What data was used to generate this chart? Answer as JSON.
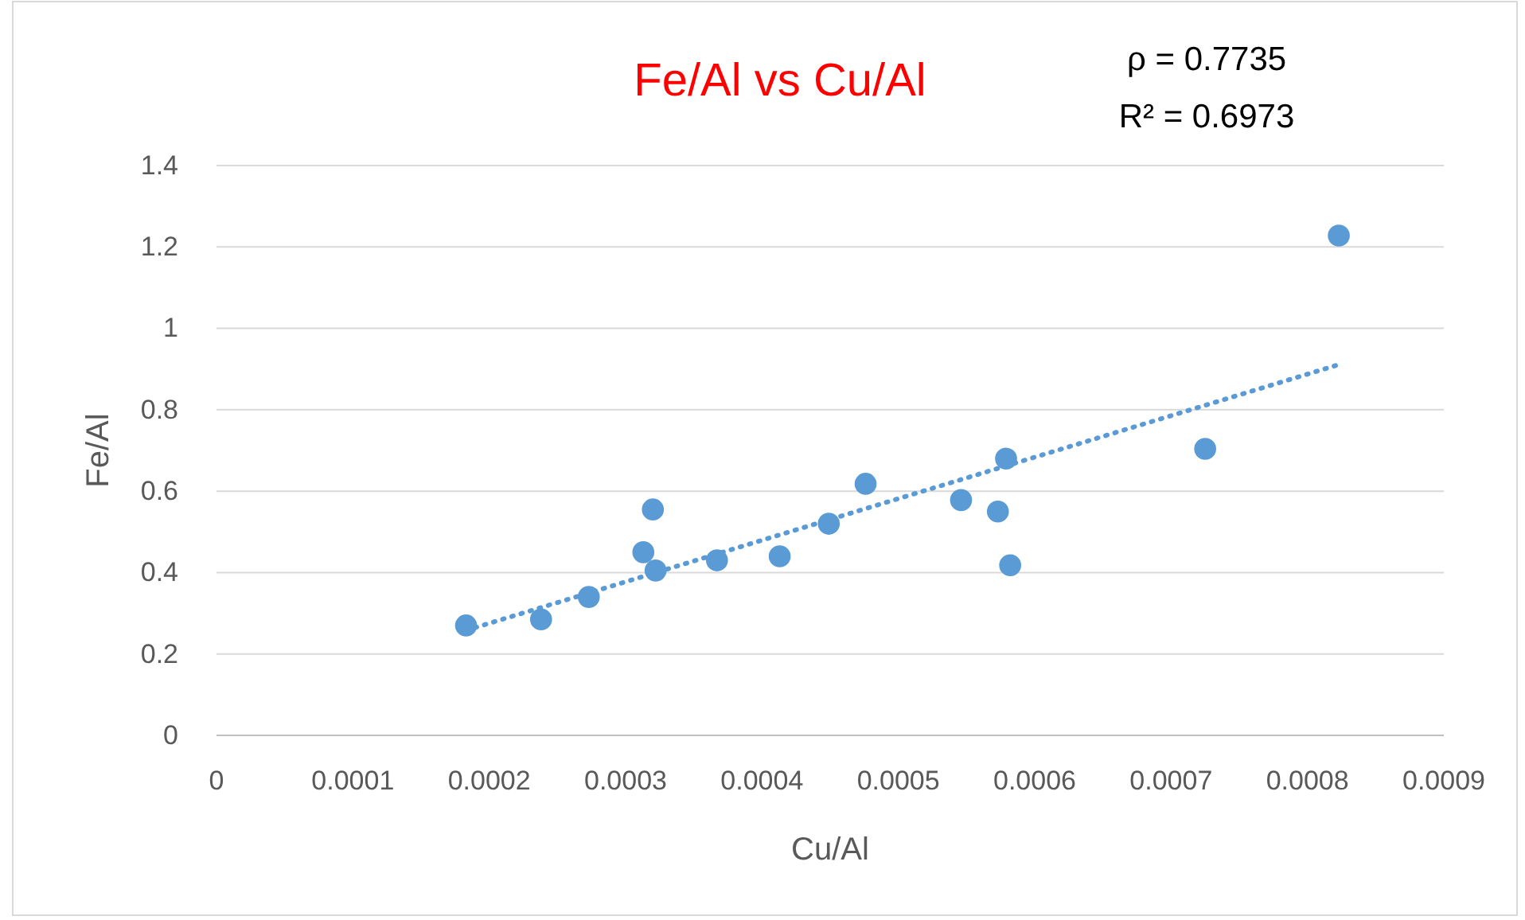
{
  "chart_data": {
    "type": "scatter",
    "title": "Fe/Al vs Cu/Al",
    "xlabel": "Cu/Al",
    "ylabel": "Fe/Al",
    "annotations": [
      "ρ = 0.7735",
      "R² = 0.6973"
    ],
    "xlim": [
      0,
      0.0009
    ],
    "xticks": [
      0,
      0.0001,
      0.0002,
      0.0003,
      0.0004,
      0.0005,
      0.0006,
      0.0007,
      0.0008,
      0.0009
    ],
    "ylim": [
      0,
      1.4
    ],
    "yticks": [
      {
        "value": 0,
        "label": "0"
      },
      0.2,
      0.4,
      0.6,
      0.8,
      {
        "value": 1,
        "label": "1"
      },
      1.2,
      1.4
    ],
    "grid": "y",
    "series": [
      {
        "type": "scatter",
        "color": "#5b9bd5",
        "marker": "circle",
        "x": [
          0.000183,
          0.000238,
          0.000273,
          0.000313,
          0.00032,
          0.000322,
          0.000367,
          0.000413,
          0.000449,
          0.000476,
          0.000546,
          0.000573,
          0.000579,
          0.000582,
          0.000725,
          0.000823
        ],
        "values": [
          0.27,
          0.285,
          0.34,
          0.45,
          0.555,
          0.405,
          0.43,
          0.44,
          0.52,
          0.618,
          0.578,
          0.55,
          0.68,
          0.418,
          0.704,
          1.228
        ]
      },
      {
        "type": "line",
        "color": "#5b9bd5",
        "line_style": "dotted",
        "marker": "none",
        "x": [
          0.000183,
          0.000823
        ],
        "values": [
          0.258,
          0.911
        ]
      }
    ]
  }
}
